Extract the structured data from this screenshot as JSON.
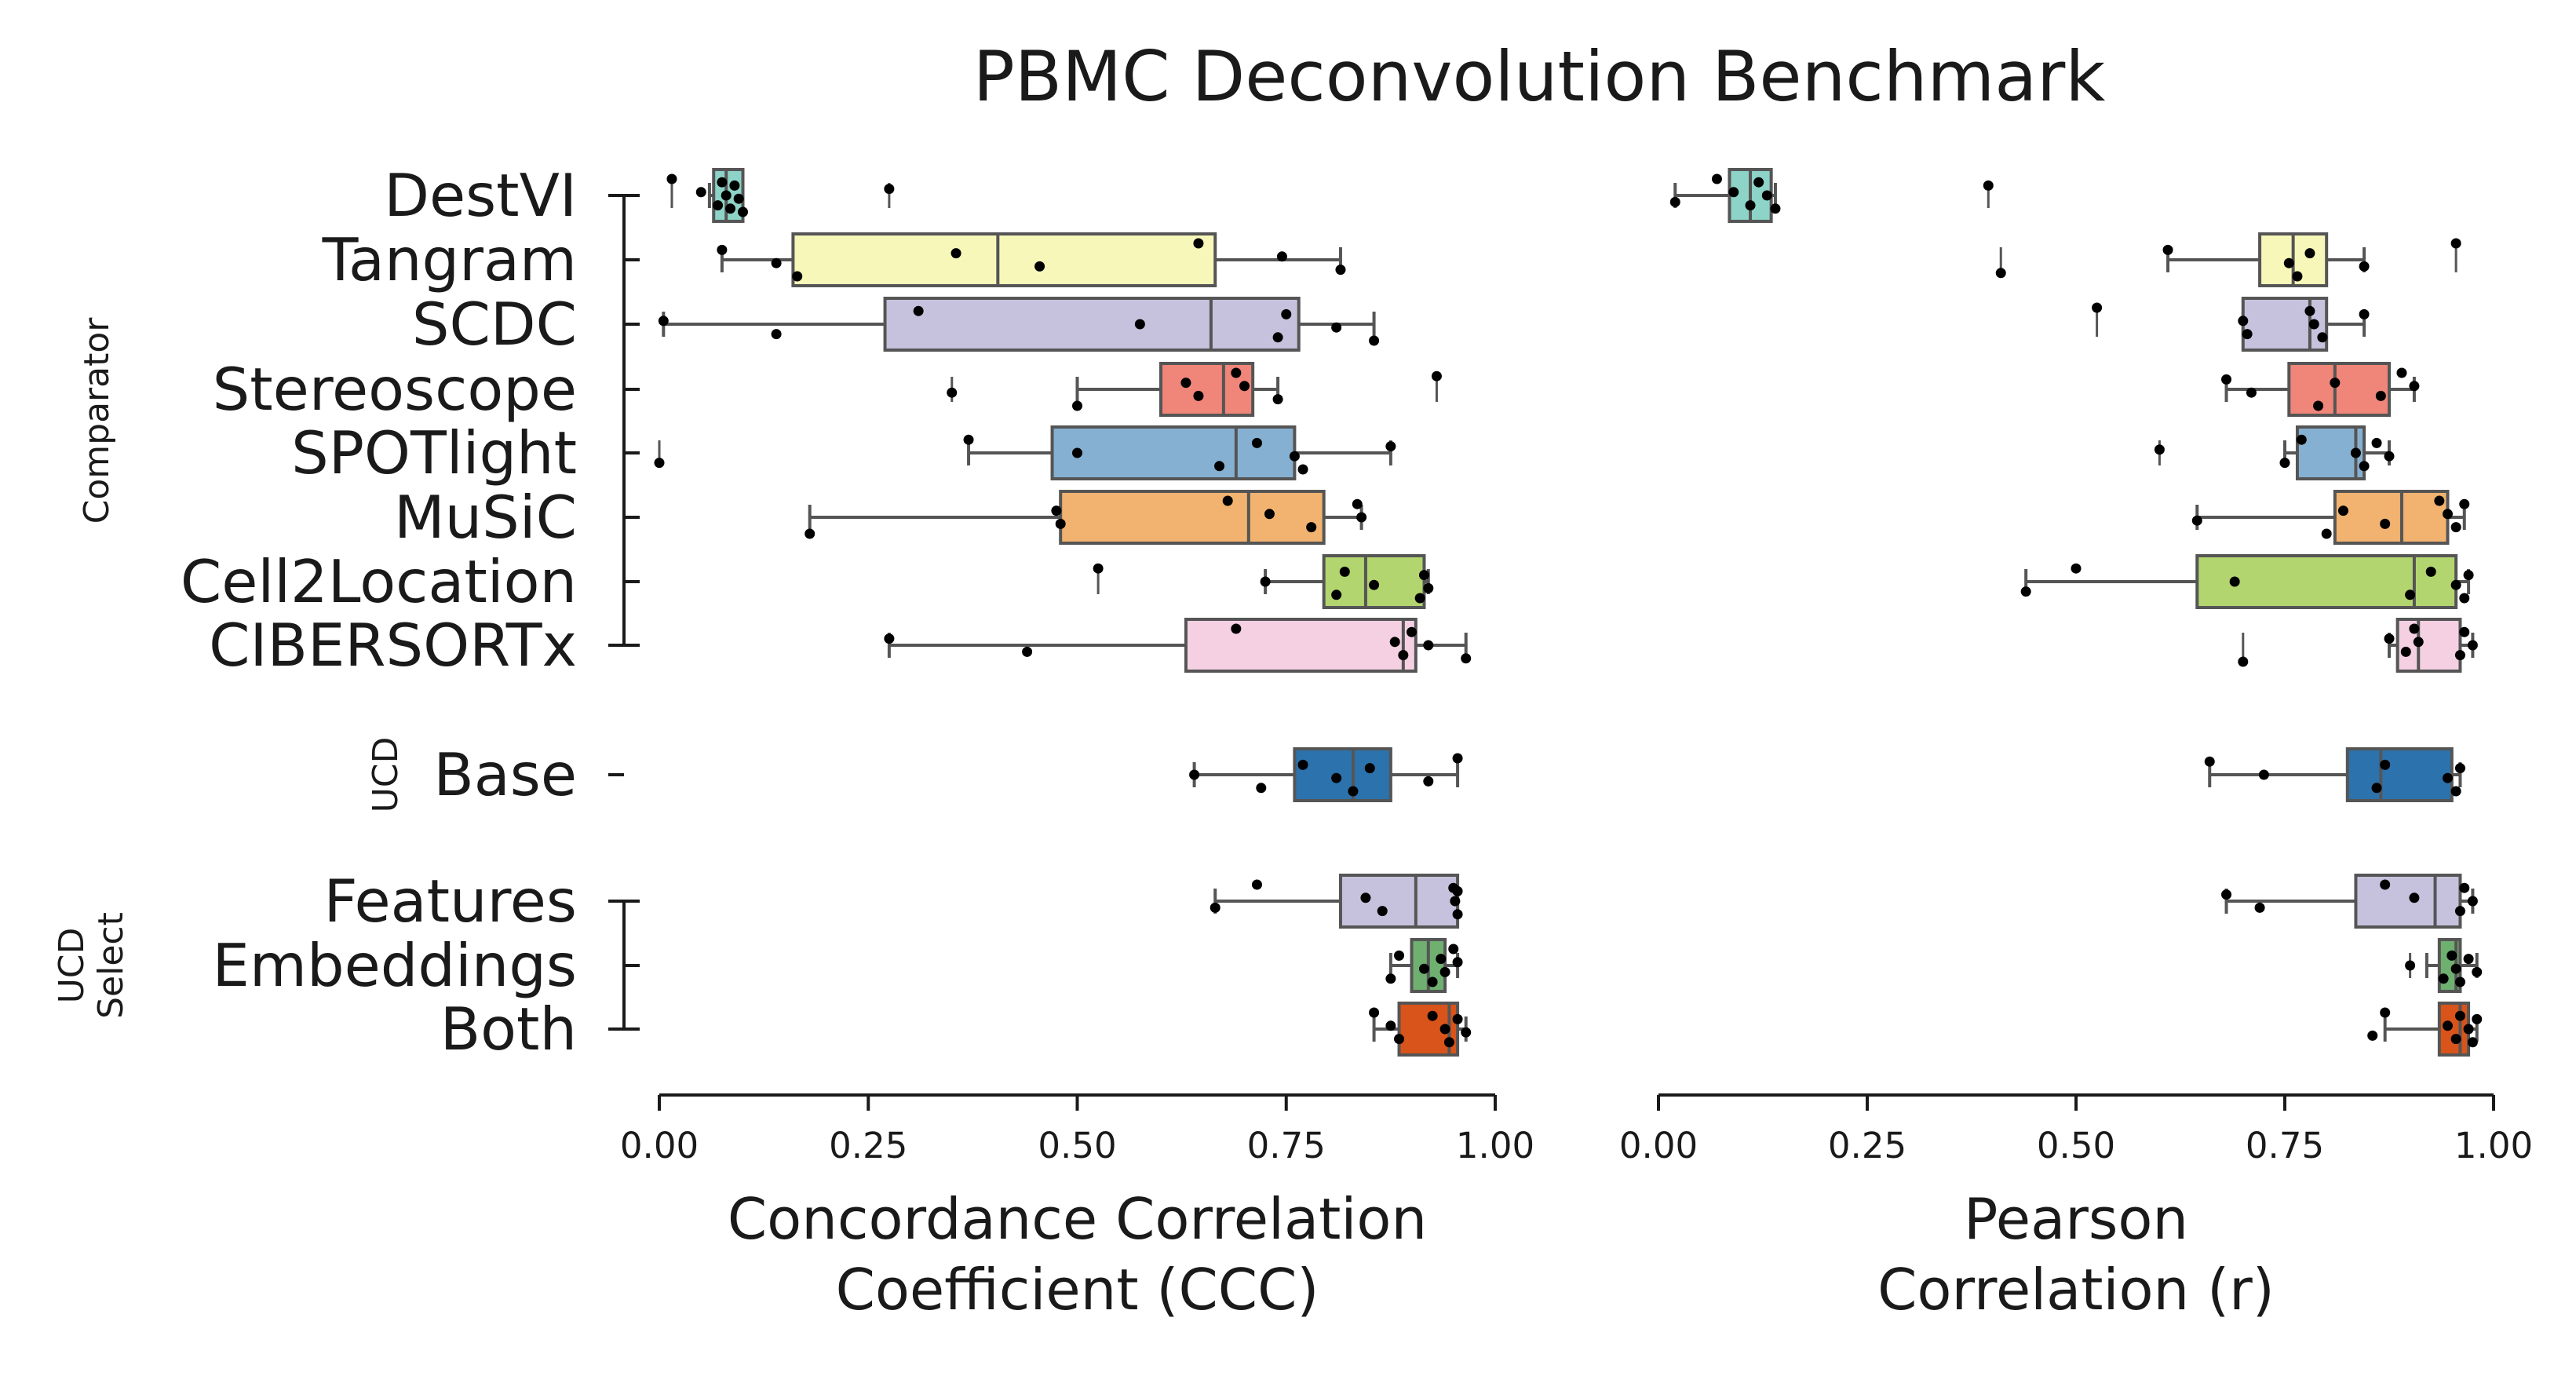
{
  "chart_data": {
    "type": "box",
    "title": "PBMC Deconvolution Benchmark",
    "methods": [
      "DestVI",
      "Tangram",
      "SCDC",
      "Stereoscope",
      "SPOTlight",
      "MuSiC",
      "Cell2Location",
      "CIBERSORTx",
      "Base",
      "Features",
      "Embeddings",
      "Both"
    ],
    "groups": [
      {
        "label_lines": [
          "Comparator"
        ],
        "methods": [
          "DestVI",
          "Tangram",
          "SCDC",
          "Stereoscope",
          "SPOTlight",
          "MuSiC",
          "Cell2Location",
          "CIBERSORTx"
        ]
      },
      {
        "label_lines": [
          "UCD"
        ],
        "methods": [
          "Base"
        ]
      },
      {
        "label_lines": [
          "UCD",
          "Select"
        ],
        "methods": [
          "Features",
          "Embeddings",
          "Both"
        ]
      }
    ],
    "colors": {
      "DestVI": "#8dd3c7",
      "Tangram": "#f7f7b9",
      "SCDC": "#c6c2dd",
      "Stereoscope": "#f0857a",
      "SPOTlight": "#86b0d1",
      "MuSiC": "#f1b36f",
      "Cell2Location": "#b3d56f",
      "CIBERSORTx": "#f5d0e3",
      "Base": "#2c72ad",
      "Features": "#c6c2dd",
      "Embeddings": "#6fb070",
      "Both": "#d9541a"
    },
    "xlim": [
      0,
      1
    ],
    "xticks": [
      "0.00",
      "0.25",
      "0.50",
      "0.75",
      "1.00"
    ],
    "panels": [
      {
        "xlabel_lines": [
          "Concordance Correlation",
          "Coefficient (CCC)"
        ],
        "boxes": [
          {
            "method": "DestVI",
            "whisker_low": 0.06,
            "q1": 0.065,
            "median": 0.08,
            "q3": 0.1,
            "whisker_high": 0.1,
            "outliers": [
              0.015,
              0.275
            ],
            "points": [
              0.015,
              0.05,
              0.07,
              0.075,
              0.08,
              0.085,
              0.09,
              0.095,
              0.1,
              0.275
            ]
          },
          {
            "method": "Tangram",
            "whisker_low": 0.075,
            "q1": 0.16,
            "median": 0.405,
            "q3": 0.665,
            "whisker_high": 0.815,
            "outliers": [],
            "points": [
              0.075,
              0.14,
              0.165,
              0.355,
              0.455,
              0.645,
              0.745,
              0.815
            ]
          },
          {
            "method": "SCDC",
            "whisker_low": 0.005,
            "q1": 0.27,
            "median": 0.66,
            "q3": 0.765,
            "whisker_high": 0.855,
            "outliers": [],
            "points": [
              0.005,
              0.14,
              0.31,
              0.575,
              0.74,
              0.75,
              0.81,
              0.855
            ]
          },
          {
            "method": "Stereoscope",
            "whisker_low": 0.5,
            "q1": 0.6,
            "median": 0.675,
            "q3": 0.71,
            "whisker_high": 0.74,
            "outliers": [
              0.35,
              0.93
            ],
            "points": [
              0.35,
              0.5,
              0.63,
              0.645,
              0.69,
              0.7,
              0.74,
              0.93
            ]
          },
          {
            "method": "SPOTlight",
            "whisker_low": 0.37,
            "q1": 0.47,
            "median": 0.69,
            "q3": 0.76,
            "whisker_high": 0.875,
            "outliers": [
              0.0
            ],
            "points": [
              0.0,
              0.37,
              0.5,
              0.67,
              0.715,
              0.76,
              0.77,
              0.875
            ]
          },
          {
            "method": "MuSiC",
            "whisker_low": 0.18,
            "q1": 0.48,
            "median": 0.705,
            "q3": 0.795,
            "whisker_high": 0.84,
            "outliers": [],
            "points": [
              0.18,
              0.475,
              0.48,
              0.68,
              0.73,
              0.78,
              0.835,
              0.84
            ]
          },
          {
            "method": "Cell2Location",
            "whisker_low": 0.725,
            "q1": 0.795,
            "median": 0.845,
            "q3": 0.915,
            "whisker_high": 0.92,
            "outliers": [
              0.525
            ],
            "points": [
              0.525,
              0.725,
              0.81,
              0.82,
              0.855,
              0.91,
              0.915,
              0.92
            ]
          },
          {
            "method": "CIBERSORTx",
            "whisker_low": 0.275,
            "q1": 0.63,
            "median": 0.89,
            "q3": 0.905,
            "whisker_high": 0.965,
            "outliers": [],
            "points": [
              0.275,
              0.44,
              0.69,
              0.88,
              0.89,
              0.9,
              0.92,
              0.965
            ]
          },
          {
            "method": "Base",
            "whisker_low": 0.64,
            "q1": 0.76,
            "median": 0.83,
            "q3": 0.875,
            "whisker_high": 0.955,
            "outliers": [],
            "points": [
              0.64,
              0.72,
              0.77,
              0.81,
              0.83,
              0.85,
              0.92,
              0.955
            ]
          },
          {
            "method": "Features",
            "whisker_low": 0.665,
            "q1": 0.815,
            "median": 0.905,
            "q3": 0.955,
            "whisker_high": 0.955,
            "outliers": [],
            "points": [
              0.665,
              0.715,
              0.845,
              0.865,
              0.95,
              0.952,
              0.955,
              0.955
            ]
          },
          {
            "method": "Embeddings",
            "whisker_low": 0.875,
            "q1": 0.9,
            "median": 0.92,
            "q3": 0.94,
            "whisker_high": 0.955,
            "outliers": [],
            "points": [
              0.875,
              0.885,
              0.915,
              0.925,
              0.935,
              0.94,
              0.95,
              0.955
            ]
          },
          {
            "method": "Both",
            "whisker_low": 0.855,
            "q1": 0.885,
            "median": 0.945,
            "q3": 0.955,
            "whisker_high": 0.965,
            "outliers": [],
            "points": [
              0.855,
              0.875,
              0.885,
              0.925,
              0.94,
              0.945,
              0.955,
              0.965
            ]
          }
        ]
      },
      {
        "xlabel_lines": [
          "Pearson",
          "Correlation (r)"
        ],
        "boxes": [
          {
            "method": "DestVI",
            "whisker_low": 0.02,
            "q1": 0.085,
            "median": 0.11,
            "q3": 0.135,
            "whisker_high": 0.14,
            "outliers": [
              0.395
            ],
            "points": [
              0.02,
              0.07,
              0.09,
              0.11,
              0.12,
              0.13,
              0.14,
              0.395
            ]
          },
          {
            "method": "Tangram",
            "whisker_low": 0.61,
            "q1": 0.72,
            "median": 0.76,
            "q3": 0.8,
            "whisker_high": 0.845,
            "outliers": [
              0.41,
              0.955
            ],
            "points": [
              0.41,
              0.61,
              0.755,
              0.765,
              0.78,
              0.845,
              0.955
            ]
          },
          {
            "method": "SCDC",
            "whisker_low": 0.7,
            "q1": 0.7,
            "median": 0.78,
            "q3": 0.8,
            "whisker_high": 0.845,
            "outliers": [
              0.525
            ],
            "points": [
              0.525,
              0.7,
              0.705,
              0.78,
              0.785,
              0.795,
              0.845
            ]
          },
          {
            "method": "Stereoscope",
            "whisker_low": 0.68,
            "q1": 0.755,
            "median": 0.81,
            "q3": 0.875,
            "whisker_high": 0.905,
            "outliers": [],
            "points": [
              0.68,
              0.71,
              0.79,
              0.81,
              0.865,
              0.89,
              0.905
            ]
          },
          {
            "method": "SPOTlight",
            "whisker_low": 0.75,
            "q1": 0.765,
            "median": 0.835,
            "q3": 0.845,
            "whisker_high": 0.875,
            "outliers": [
              0.6
            ],
            "points": [
              0.6,
              0.75,
              0.77,
              0.835,
              0.845,
              0.86,
              0.875
            ]
          },
          {
            "method": "MuSiC",
            "whisker_low": 0.645,
            "q1": 0.81,
            "median": 0.89,
            "q3": 0.945,
            "whisker_high": 0.965,
            "outliers": [],
            "points": [
              0.645,
              0.8,
              0.82,
              0.87,
              0.935,
              0.945,
              0.955,
              0.965
            ]
          },
          {
            "method": "Cell2Location",
            "whisker_low": 0.44,
            "q1": 0.645,
            "median": 0.905,
            "q3": 0.955,
            "whisker_high": 0.97,
            "outliers": [],
            "points": [
              0.44,
              0.5,
              0.69,
              0.9,
              0.925,
              0.955,
              0.965,
              0.97
            ]
          },
          {
            "method": "CIBERSORTx",
            "whisker_low": 0.875,
            "q1": 0.885,
            "median": 0.91,
            "q3": 0.96,
            "whisker_high": 0.975,
            "outliers": [
              0.7
            ],
            "points": [
              0.7,
              0.875,
              0.895,
              0.905,
              0.91,
              0.96,
              0.965,
              0.975
            ]
          },
          {
            "method": "Base",
            "whisker_low": 0.66,
            "q1": 0.825,
            "median": 0.865,
            "q3": 0.95,
            "whisker_high": 0.96,
            "outliers": [],
            "points": [
              0.66,
              0.725,
              0.86,
              0.87,
              0.945,
              0.955,
              0.96
            ]
          },
          {
            "method": "Features",
            "whisker_low": 0.68,
            "q1": 0.835,
            "median": 0.93,
            "q3": 0.96,
            "whisker_high": 0.975,
            "outliers": [],
            "points": [
              0.68,
              0.72,
              0.87,
              0.905,
              0.96,
              0.965,
              0.975
            ]
          },
          {
            "method": "Embeddings",
            "whisker_low": 0.92,
            "q1": 0.935,
            "median": 0.955,
            "q3": 0.96,
            "whisker_high": 0.98,
            "outliers": [
              0.9
            ],
            "points": [
              0.9,
              0.94,
              0.95,
              0.955,
              0.96,
              0.97,
              0.98
            ]
          },
          {
            "method": "Both",
            "whisker_low": 0.87,
            "q1": 0.935,
            "median": 0.96,
            "q3": 0.97,
            "whisker_high": 0.98,
            "outliers": [],
            "points": [
              0.855,
              0.87,
              0.945,
              0.955,
              0.96,
              0.97,
              0.975,
              0.98
            ]
          }
        ]
      }
    ]
  }
}
